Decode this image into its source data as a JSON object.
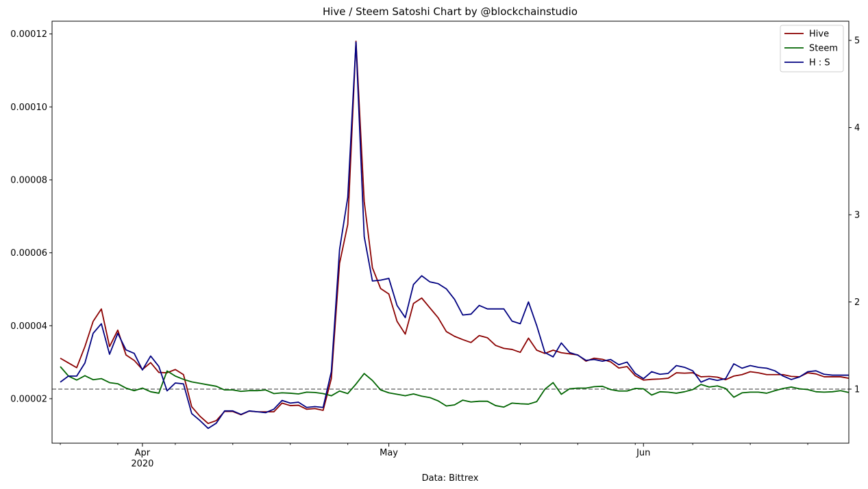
{
  "chart_data": {
    "type": "line",
    "title": "Hive / Steem Satoshi Chart by @blockchainstudio",
    "xlabel": "Data: Bittrex",
    "x_tick_labels": [
      {
        "day": 10,
        "label": "Apr",
        "sublabel": "2020"
      },
      {
        "day": 40,
        "label": "May",
        "sublabel": ""
      },
      {
        "day": 71,
        "label": "Jun",
        "sublabel": ""
      }
    ],
    "x_range_days": [
      -1,
      96
    ],
    "left_axis": {
      "ylim": [
        7.8e-06,
        0.0001235
      ],
      "ticks": [
        "0.00002",
        "0.00004",
        "0.00006",
        "0.00008",
        "0.00010",
        "0.00012"
      ]
    },
    "right_axis": {
      "ylim": [
        0.38,
        5.22
      ],
      "ticks": [
        "1",
        "2",
        "3",
        "4",
        "5"
      ]
    },
    "reference_line": {
      "axis": "right",
      "value": 1.0,
      "style": "dashed",
      "color": "#808080"
    },
    "legend_position": "top-right",
    "series": [
      {
        "name": "Hive",
        "axis": "left",
        "color": "#8b0000",
        "values": [
          3.11e-05,
          2.98e-05,
          2.85e-05,
          3.43e-05,
          4.12e-05,
          4.46e-05,
          3.43e-05,
          3.88e-05,
          3.2e-05,
          3.05e-05,
          2.8e-05,
          2.99e-05,
          2.72e-05,
          2.71e-05,
          2.8e-05,
          2.66e-05,
          1.78e-05,
          1.52e-05,
          1.32e-05,
          1.4e-05,
          1.65e-05,
          1.65e-05,
          1.56e-05,
          1.66e-05,
          1.64e-05,
          1.64e-05,
          1.64e-05,
          1.88e-05,
          1.81e-05,
          1.82e-05,
          1.71e-05,
          1.73e-05,
          1.68e-05,
          2.55e-05,
          5.71e-05,
          6.78e-05,
          0.000118,
          7.41e-05,
          5.59e-05,
          5.02e-05,
          4.87e-05,
          4.12e-05,
          3.77e-05,
          4.61e-05,
          4.76e-05,
          4.49e-05,
          4.22e-05,
          3.84e-05,
          3.71e-05,
          3.62e-05,
          3.54e-05,
          3.73e-05,
          3.67e-05,
          3.46e-05,
          3.38e-05,
          3.35e-05,
          3.27e-05,
          3.66e-05,
          3.33e-05,
          3.24e-05,
          3.33e-05,
          3.26e-05,
          3.23e-05,
          3.2e-05,
          3.03e-05,
          3.11e-05,
          3.08e-05,
          3.01e-05,
          2.84e-05,
          2.88e-05,
          2.63e-05,
          2.51e-05,
          2.53e-05,
          2.54e-05,
          2.56e-05,
          2.71e-05,
          2.7e-05,
          2.71e-05,
          2.6e-05,
          2.61e-05,
          2.59e-05,
          2.52e-05,
          2.62e-05,
          2.66e-05,
          2.74e-05,
          2.71e-05,
          2.66e-05,
          2.66e-05,
          2.66e-05,
          2.61e-05,
          2.6e-05,
          2.71e-05,
          2.68e-05,
          2.6e-05,
          2.6e-05,
          2.6e-05,
          2.56e-05
        ]
      },
      {
        "name": "Steem",
        "axis": "left",
        "color": "#006400",
        "values": [
          2.88e-05,
          2.62e-05,
          2.51e-05,
          2.63e-05,
          2.52e-05,
          2.55e-05,
          2.44e-05,
          2.41e-05,
          2.29e-05,
          2.22e-05,
          2.29e-05,
          2.19e-05,
          2.15e-05,
          2.76e-05,
          2.62e-05,
          2.53e-05,
          2.46e-05,
          2.42e-05,
          2.38e-05,
          2.34e-05,
          2.24e-05,
          2.24e-05,
          2.2e-05,
          2.22e-05,
          2.22e-05,
          2.24e-05,
          2.14e-05,
          2.16e-05,
          2.15e-05,
          2.13e-05,
          2.18e-05,
          2.17e-05,
          2.14e-05,
          2.08e-05,
          2.21e-05,
          2.14e-05,
          2.4e-05,
          2.69e-05,
          2.5e-05,
          2.24e-05,
          2.16e-05,
          2.12e-05,
          2.08e-05,
          2.13e-05,
          2.07e-05,
          2.03e-05,
          1.94e-05,
          1.8e-05,
          1.83e-05,
          1.96e-05,
          1.91e-05,
          1.93e-05,
          1.93e-05,
          1.81e-05,
          1.77e-05,
          1.88e-05,
          1.86e-05,
          1.85e-05,
          1.92e-05,
          2.26e-05,
          2.44e-05,
          2.12e-05,
          2.27e-05,
          2.29e-05,
          2.29e-05,
          2.33e-05,
          2.34e-05,
          2.25e-05,
          2.21e-05,
          2.21e-05,
          2.28e-05,
          2.27e-05,
          2.1e-05,
          2.19e-05,
          2.18e-05,
          2.15e-05,
          2.19e-05,
          2.25e-05,
          2.39e-05,
          2.32e-05,
          2.35e-05,
          2.28e-05,
          2.04e-05,
          2.16e-05,
          2.18e-05,
          2.18e-05,
          2.15e-05,
          2.22e-05,
          2.28e-05,
          2.32e-05,
          2.27e-05,
          2.25e-05,
          2.19e-05,
          2.18e-05,
          2.19e-05,
          2.22e-05,
          2.17e-05
        ]
      },
      {
        "name": "H : S",
        "axis": "right",
        "color": "#000080",
        "values": [
          1.08,
          1.15,
          1.15,
          1.3,
          1.64,
          1.75,
          1.4,
          1.64,
          1.45,
          1.41,
          1.22,
          1.38,
          1.26,
          0.98,
          1.07,
          1.06,
          0.72,
          0.64,
          0.55,
          0.61,
          0.75,
          0.75,
          0.71,
          0.75,
          0.74,
          0.73,
          0.77,
          0.87,
          0.84,
          0.85,
          0.79,
          0.8,
          0.79,
          1.2,
          2.6,
          3.2,
          4.98,
          2.75,
          2.24,
          2.25,
          2.27,
          1.96,
          1.82,
          2.2,
          2.3,
          2.23,
          2.21,
          2.15,
          2.03,
          1.85,
          1.86,
          1.96,
          1.92,
          1.92,
          1.92,
          1.78,
          1.75,
          2.0,
          1.73,
          1.42,
          1.37,
          1.53,
          1.42,
          1.39,
          1.33,
          1.34,
          1.32,
          1.34,
          1.28,
          1.31,
          1.18,
          1.12,
          1.2,
          1.17,
          1.18,
          1.27,
          1.25,
          1.21,
          1.08,
          1.12,
          1.1,
          1.12,
          1.29,
          1.24,
          1.27,
          1.25,
          1.24,
          1.21,
          1.15,
          1.11,
          1.14,
          1.2,
          1.21,
          1.17,
          1.16,
          1.16,
          1.16
        ]
      }
    ]
  }
}
